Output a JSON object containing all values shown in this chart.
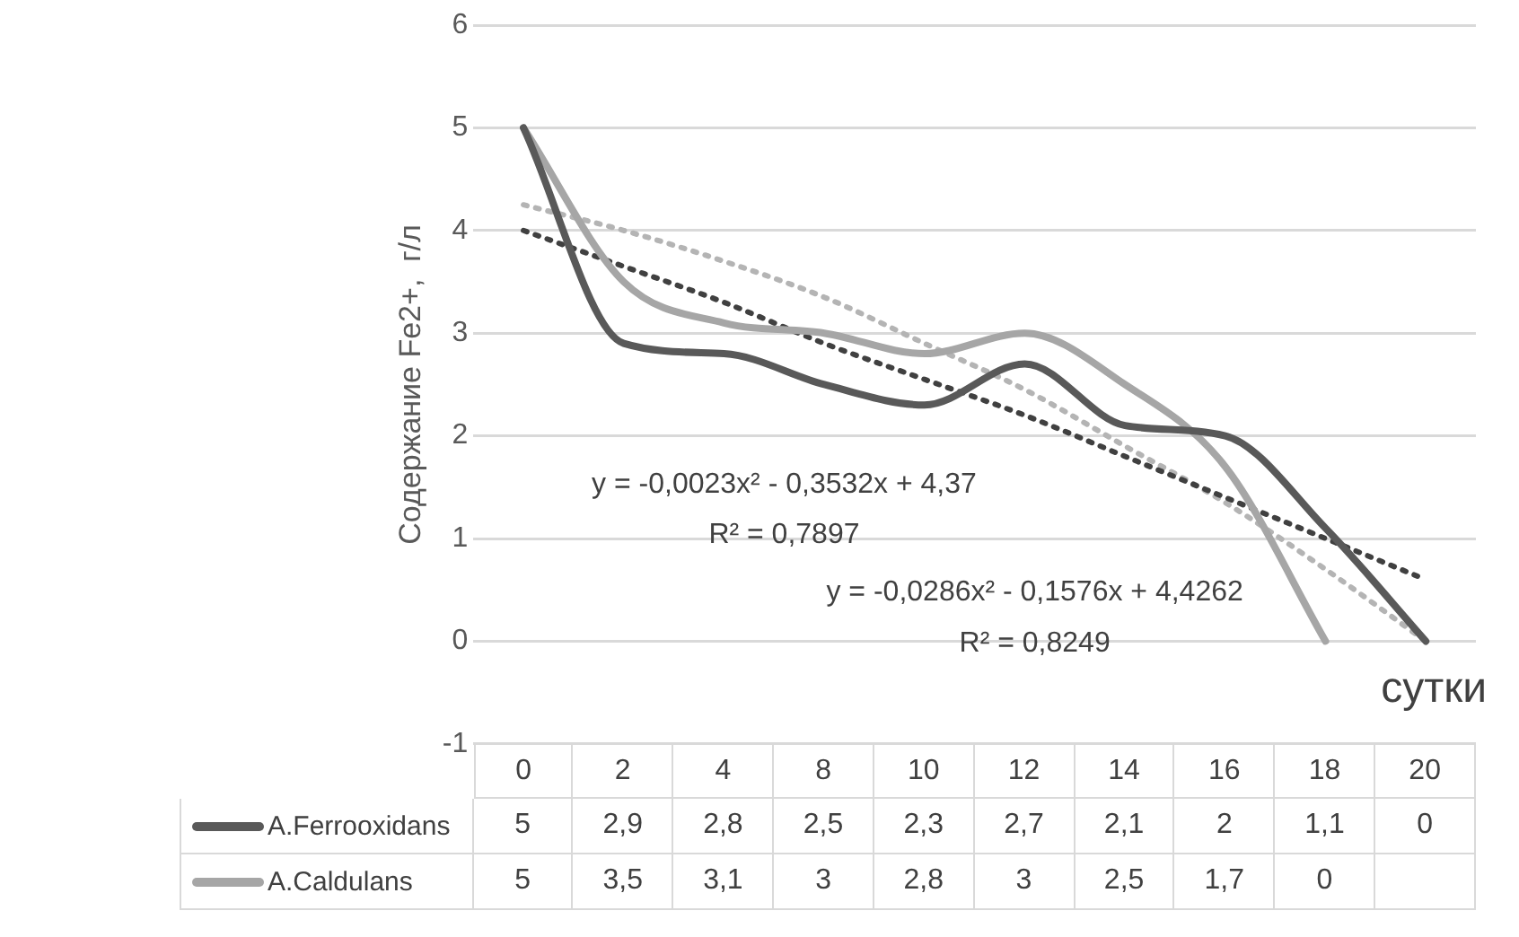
{
  "chart_data": {
    "type": "line",
    "ylabel": "Содержание Fe2+,  г/л",
    "xlabel": "сутки",
    "categories": [
      "0",
      "2",
      "4",
      "8",
      "10",
      "12",
      "14",
      "16",
      "18",
      "20"
    ],
    "series": [
      {
        "name": "A.Ferrooxidans",
        "color": "#595959",
        "values": [
          5,
          2.9,
          2.8,
          2.5,
          2.3,
          2.7,
          2.1,
          2,
          1.1,
          0
        ],
        "value_labels": [
          "5",
          "2,9",
          "2,8",
          "2,5",
          "2,3",
          "2,7",
          "2,1",
          "2",
          "1,1",
          "0"
        ]
      },
      {
        "name": "A.Caldulans",
        "color": "#a6a6a6",
        "values": [
          5,
          3.5,
          3.1,
          3,
          2.8,
          3,
          2.5,
          1.7,
          0,
          null
        ],
        "value_labels": [
          "5",
          "3,5",
          "3,1",
          "3",
          "2,8",
          "3",
          "2,5",
          "1,7",
          "0",
          null
        ]
      },
      {
        "color": "#404040",
        "line_style": "dotted",
        "values": [
          4.0,
          3.65,
          3.3,
          2.9,
          2.55,
          2.2,
          1.8,
          1.4,
          1.0,
          0.6
        ]
      },
      {
        "color": "#b4b4b4",
        "line_style": "dotted",
        "values": [
          4.25,
          4.0,
          3.7,
          3.35,
          2.9,
          2.45,
          1.9,
          1.35,
          0.7,
          0
        ]
      }
    ],
    "ylim": [
      -1,
      6
    ],
    "yticks": [
      -1,
      0,
      1,
      2,
      3,
      4,
      5,
      6
    ],
    "grid": "y",
    "legend": "bottom",
    "marker": "none",
    "annotations": [
      "y = -0,0023x² - 0,3532x + 4,37",
      "R² = 0,7897",
      "y = -0,0286x² - 0,1576x + 4,4262",
      "R² = 0,8249"
    ]
  }
}
